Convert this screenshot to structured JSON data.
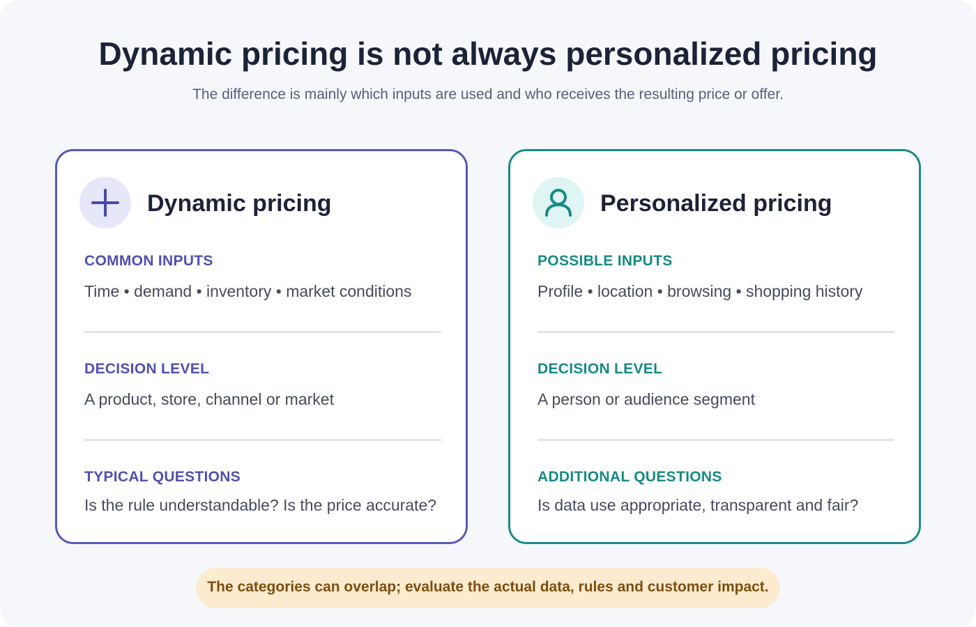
{
  "header": {
    "title": "Dynamic pricing is not always personalized pricing",
    "subtitle": "The difference is mainly which inputs are used and who receives the resulting price or offer."
  },
  "cards": [
    {
      "title": "Dynamic pricing",
      "icon": "plus-icon",
      "accent": "#5858b8",
      "sections": [
        {
          "label": "COMMON INPUTS",
          "text": "Time • demand • inventory • market conditions"
        },
        {
          "label": "DECISION LEVEL",
          "text": "A product, store, channel or market"
        },
        {
          "label": "TYPICAL QUESTIONS",
          "text": "Is the rule understandable? Is the price accurate?"
        }
      ]
    },
    {
      "title": "Personalized pricing",
      "icon": "person-icon",
      "accent": "#1a8a86",
      "sections": [
        {
          "label": "POSSIBLE INPUTS",
          "text": "Profile • location • browsing • shopping history"
        },
        {
          "label": "DECISION LEVEL",
          "text": "A person or audience segment"
        },
        {
          "label": "ADDITIONAL QUESTIONS",
          "text": "Is data use appropriate, transparent and fair?"
        }
      ]
    }
  ],
  "footer": {
    "note": "The categories can overlap; evaluate the actual data, rules and customer impact."
  }
}
